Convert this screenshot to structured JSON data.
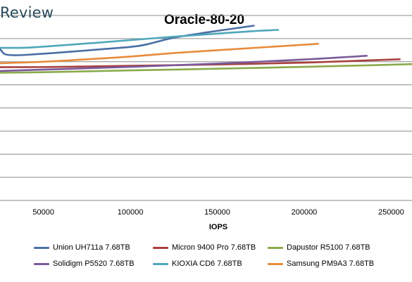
{
  "brand": "Review",
  "chart_data": {
    "type": "line",
    "title": "Oracle-80-20",
    "xlabel": "IOPS",
    "ylabel": "",
    "xlim": [
      25000,
      262000
    ],
    "ylim": [
      0,
      1
    ],
    "xticks": [
      50000,
      100000,
      150000,
      200000,
      250000
    ],
    "xtick_labels": [
      "50000",
      "100000",
      "150000",
      "200000",
      "250000"
    ],
    "grid": "horizontal",
    "legend_position": "bottom",
    "series": [
      {
        "name": "Union UH711a 7.68TB",
        "color": "#4A6FA5",
        "x": [
          25000,
          28000,
          35000,
          45000,
          60000,
          80000,
          100000,
          110000,
          125000,
          145000,
          160000,
          171000
        ],
        "y": [
          0.82,
          0.79,
          0.785,
          0.79,
          0.8,
          0.815,
          0.83,
          0.845,
          0.88,
          0.91,
          0.93,
          0.945
        ]
      },
      {
        "name": "Micron 9400 Pro 7.68TB",
        "color": "#A9403E",
        "x": [
          25000,
          60000,
          100000,
          150000,
          200000,
          240000,
          255000
        ],
        "y": [
          0.72,
          0.722,
          0.728,
          0.735,
          0.745,
          0.758,
          0.763
        ]
      },
      {
        "name": "Dapustor R5100 7.68TB",
        "color": "#8AAA4A",
        "x": [
          25000,
          60000,
          100000,
          150000,
          200000,
          240000,
          262000
        ],
        "y": [
          0.69,
          0.695,
          0.703,
          0.712,
          0.722,
          0.731,
          0.737
        ]
      },
      {
        "name": "Solidigm P5520 7.68TB",
        "color": "#7A5A9A",
        "x": [
          25000,
          60000,
          100000,
          150000,
          200000,
          236000
        ],
        "y": [
          0.7,
          0.71,
          0.722,
          0.74,
          0.762,
          0.782
        ]
      },
      {
        "name": "KIOXIA CD6 7.68TB",
        "color": "#4FA7BA",
        "x": [
          25000,
          40000,
          60000,
          80000,
          100000,
          125000,
          150000,
          170000,
          185000
        ],
        "y": [
          0.825,
          0.826,
          0.838,
          0.852,
          0.867,
          0.885,
          0.902,
          0.915,
          0.922
        ]
      },
      {
        "name": "Samsung PM9A3 7.68TB",
        "color": "#E88B3B",
        "x": [
          25000,
          50000,
          75000,
          100000,
          125000,
          150000,
          175000,
          200000,
          208000
        ],
        "y": [
          0.742,
          0.75,
          0.763,
          0.778,
          0.797,
          0.812,
          0.827,
          0.842,
          0.847
        ]
      }
    ]
  }
}
